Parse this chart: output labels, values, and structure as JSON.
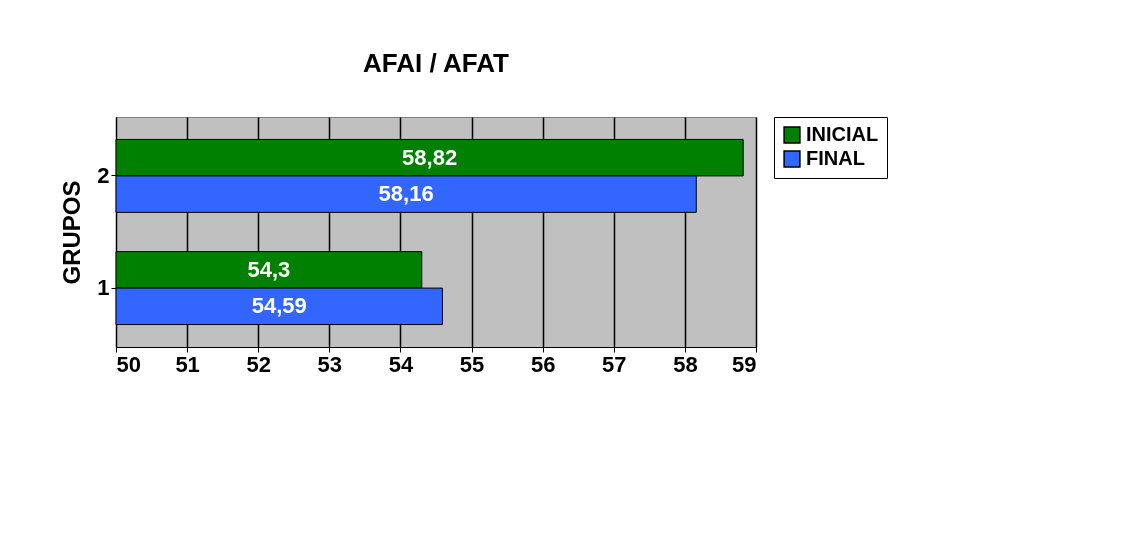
{
  "chart_data": {
    "type": "bar",
    "orientation": "horizontal",
    "title": "AFAI / AFAT",
    "ylabel": "GRUPOS",
    "categories": [
      "2",
      "1"
    ],
    "series": [
      {
        "name": "INICIAL",
        "color": "#008000",
        "values": [
          58.82,
          54.3
        ],
        "value_labels": [
          "58,82",
          "54,3"
        ]
      },
      {
        "name": "FINAL",
        "color": "#3366ff",
        "values": [
          58.16,
          54.59
        ],
        "value_labels": [
          "58,16",
          "54,59"
        ]
      }
    ],
    "xlim": [
      50,
      59
    ],
    "xticks": [
      50,
      51,
      52,
      53,
      54,
      55,
      56,
      57,
      58,
      59
    ],
    "grid": "x",
    "legend": "right"
  }
}
